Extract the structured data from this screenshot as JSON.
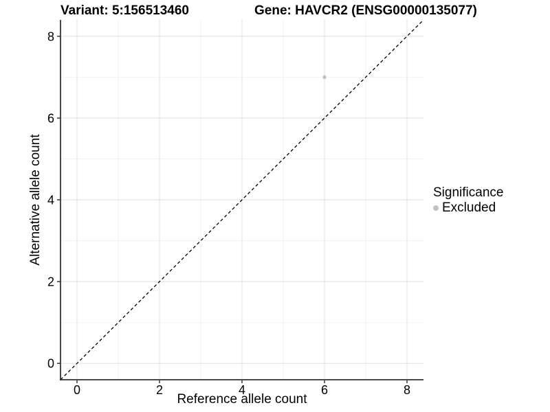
{
  "titles": {
    "variant": "Variant: 5:156513460",
    "gene": "Gene: HAVCR2 (ENSG00000135077)"
  },
  "axes": {
    "x_label": "Reference allele count",
    "y_label": "Alternative allele count"
  },
  "legend": {
    "title": "Significance",
    "entries": [
      {
        "label": "Excluded",
        "color": "#c2c2c2"
      }
    ]
  },
  "colors": {
    "point": "#c2c2c2",
    "grid_major": "#e4e4e4",
    "grid_minor": "#f2f2f2",
    "axis_line": "#333333",
    "tick_mark": "#333333",
    "text": "#000000",
    "reference_line": "#000000",
    "background": "#ffffff"
  },
  "chart_data": {
    "type": "scatter",
    "title": "Variant: 5:156513460   Gene: HAVCR2 (ENSG00000135077)",
    "xlabel": "Reference allele count",
    "ylabel": "Alternative allele count",
    "xlim": [
      -0.4,
      8.4
    ],
    "ylim": [
      -0.4,
      8.4
    ],
    "x_ticks": [
      0,
      2,
      4,
      6,
      8
    ],
    "y_ticks": [
      0,
      2,
      4,
      6,
      8
    ],
    "x_minor_ticks": [
      1,
      3,
      5,
      7
    ],
    "y_minor_ticks": [
      1,
      3,
      5,
      7
    ],
    "grid": true,
    "legend_position": "right",
    "legend_title": "Significance",
    "reference_line": {
      "kind": "y=x identity",
      "style": "dashed",
      "color": "#000000"
    },
    "series": [
      {
        "name": "Excluded",
        "color": "#c2c2c2",
        "points": [
          {
            "x": 6,
            "y": 7
          }
        ]
      }
    ]
  }
}
